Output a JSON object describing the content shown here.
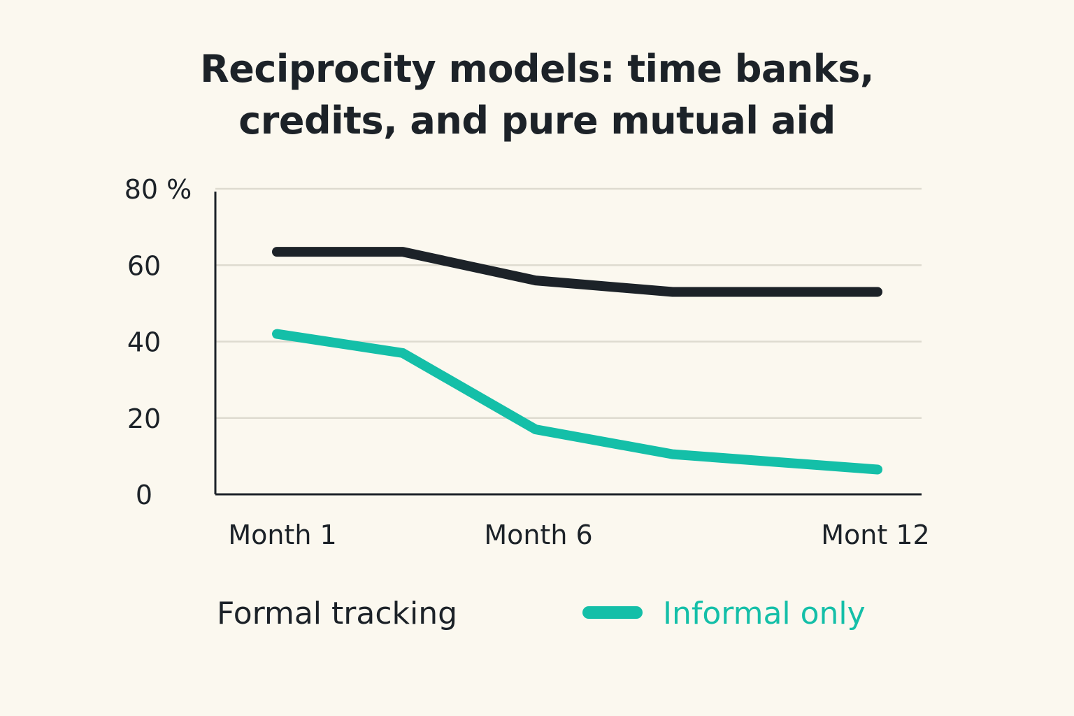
{
  "chart_data": {
    "type": "line",
    "title_lines": [
      "Reciprocity models: time banks,",
      "credits, and pure mutual aid"
    ],
    "xlabel": "",
    "ylabel": "",
    "x_positions": [
      1,
      3,
      5,
      8,
      12
    ],
    "x_tick_values": [
      1,
      6,
      12
    ],
    "x_tick_labels": [
      "Month 1",
      "Month 6",
      "Mont 12"
    ],
    "y_ticks": [
      0,
      20,
      40,
      60,
      80
    ],
    "y_tick_labels": [
      "0",
      "20",
      "40",
      "60",
      "80 %"
    ],
    "ylim": [
      0,
      80
    ],
    "grid": true,
    "legend_position": "bottom",
    "series": [
      {
        "name": "Formal tracking",
        "color": "#1c2228",
        "values": [
          63.5,
          63.5,
          56,
          53,
          53
        ]
      },
      {
        "name": "Informal only",
        "color": "#14bfa8",
        "values": [
          42,
          37,
          17,
          10.5,
          6.5
        ]
      }
    ]
  }
}
